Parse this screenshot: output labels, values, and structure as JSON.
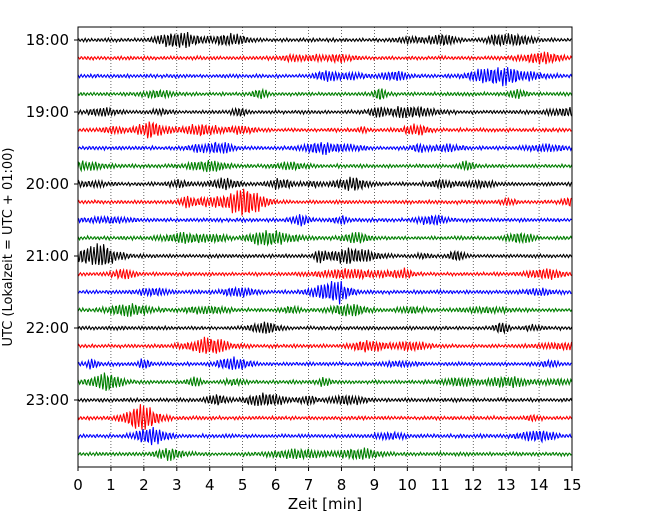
{
  "chart_data": {
    "type": "line",
    "title": "",
    "xlabel": "Zeit  [min]",
    "ylabel": "UTC (Lokalzeit = UTC + 01:00)",
    "xlim": [
      0,
      15
    ],
    "x_ticks": [
      "0",
      "1",
      "2",
      "3",
      "4",
      "5",
      "6",
      "7",
      "8",
      "9",
      "10",
      "11",
      "12",
      "13",
      "14",
      "15"
    ],
    "y_tick_labels": [
      "18:00",
      "19:00",
      "20:00",
      "21:00",
      "22:00",
      "23:00"
    ],
    "trace_count": 24,
    "trace_interval_min": 15,
    "start_time": "18:00",
    "grid": "vertical dotted lines at each minute",
    "trace_colors": [
      "#000000",
      "#ff0000",
      "#0000ff",
      "#007f00"
    ]
  }
}
